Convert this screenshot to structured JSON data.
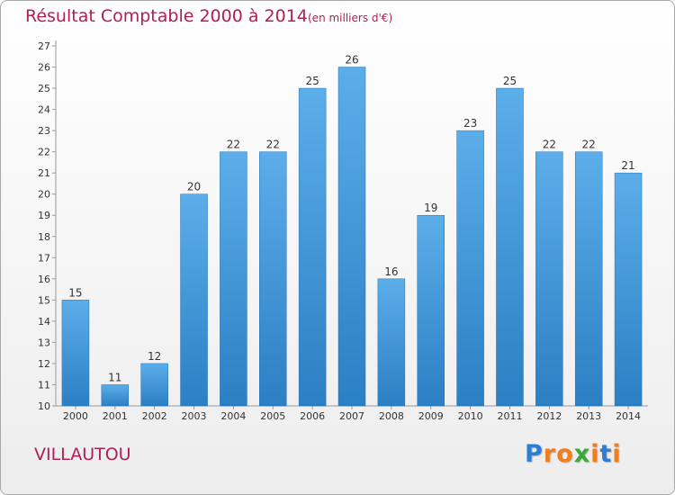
{
  "chart_data": {
    "type": "bar",
    "title": "Résultat Comptable 2000 à 2014",
    "subtitle": "(en milliers d'€)",
    "categories": [
      "2000",
      "2001",
      "2002",
      "2003",
      "2004",
      "2005",
      "2006",
      "2007",
      "2008",
      "2009",
      "2010",
      "2011",
      "2012",
      "2013",
      "2014"
    ],
    "values": [
      15,
      11,
      12,
      20,
      22,
      22,
      25,
      26,
      16,
      19,
      23,
      25,
      22,
      22,
      21
    ],
    "xlabel": "",
    "ylabel": "",
    "ylim": [
      10,
      27
    ],
    "yticks": [
      10,
      11,
      12,
      13,
      14,
      15,
      16,
      17,
      18,
      19,
      20,
      21,
      22,
      23,
      24,
      25,
      26,
      27
    ],
    "grid": false,
    "bar_color": "#3d8fd6"
  },
  "location": "VILLAUTOU",
  "brand": {
    "letters": [
      "P",
      "r",
      "o",
      "x",
      "i",
      "t",
      "i"
    ],
    "colors": [
      "#2a7fd4",
      "#f07e1b",
      "#f07e1b",
      "#3aa935",
      "#f07e1b",
      "#2a7fd4",
      "#f07e1b"
    ]
  },
  "colors": {
    "title": "#b01e54",
    "bar_light": "#5caeea",
    "bar_dark": "#2b7fc3"
  }
}
